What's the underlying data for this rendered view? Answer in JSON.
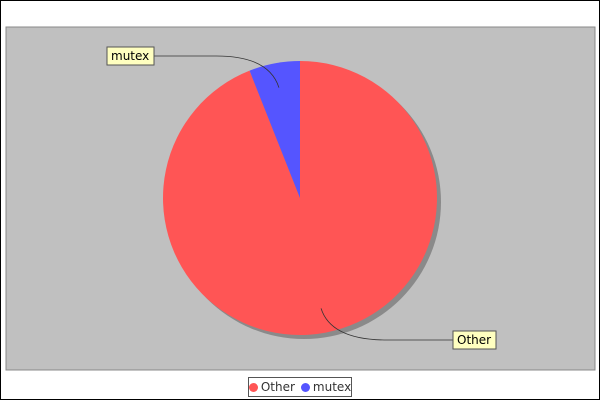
{
  "chart_data": {
    "type": "pie",
    "title": "",
    "slices": [
      {
        "label": "Other",
        "value": 94,
        "color": "#ff5555"
      },
      {
        "label": "mutex",
        "value": 6,
        "color": "#5555ff"
      }
    ],
    "start_angle_degrees": 90,
    "direction": "clockwise",
    "plot_background": "#c0c0c0",
    "legend_position": "bottom-center",
    "labels_style": "callout boxes with leader lines"
  },
  "legend": {
    "items": [
      {
        "label": "Other",
        "color": "#ff5555"
      },
      {
        "label": "mutex",
        "color": "#5555ff"
      }
    ]
  }
}
